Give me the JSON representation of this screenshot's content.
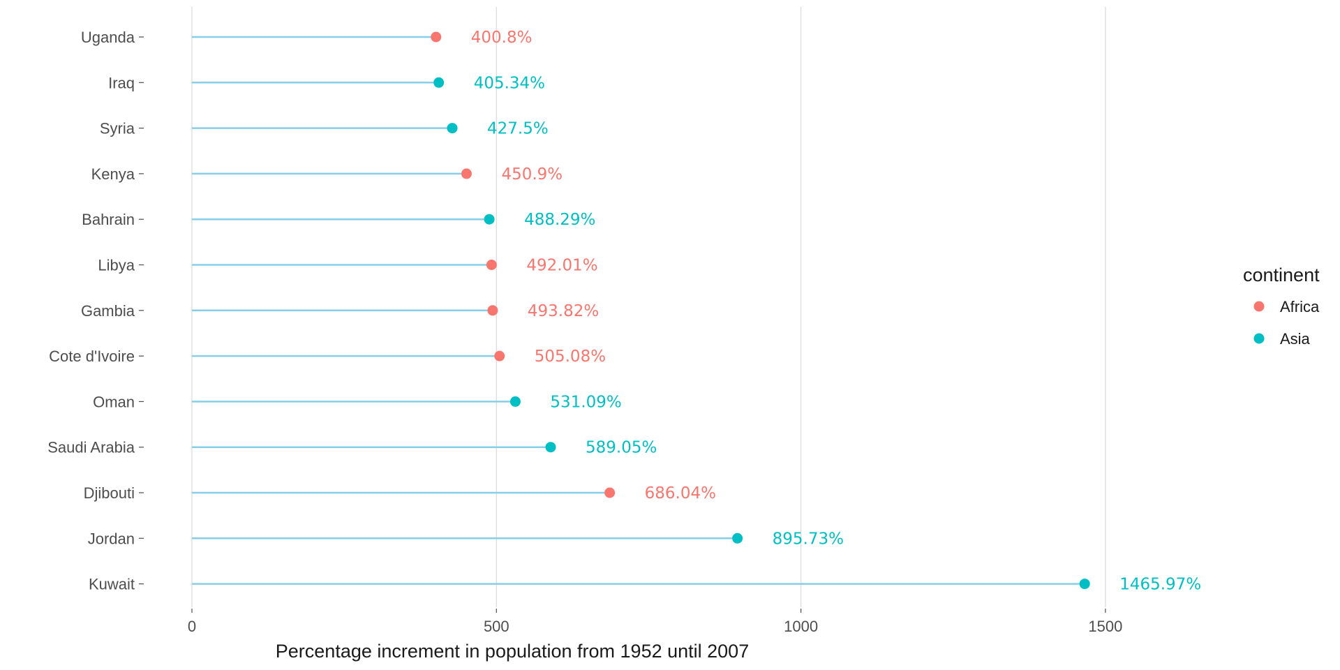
{
  "chart_data": {
    "type": "lollipop",
    "xlabel": "Percentage increment in population from 1952 until 2007",
    "xlim": [
      0,
      1800
    ],
    "x_ticks": [
      0,
      500,
      1000,
      1500
    ],
    "x_tick_labels": [
      "0",
      "500",
      "1000",
      "1500"
    ],
    "grid": "vertical major gridlines",
    "stem_color": "#87ceeb",
    "categories": [
      "Uganda",
      "Iraq",
      "Syria",
      "Kenya",
      "Bahrain",
      "Libya",
      "Gambia",
      "Cote d'Ivoire",
      "Oman",
      "Saudi Arabia",
      "Djibouti",
      "Jordan",
      "Kuwait"
    ],
    "values": [
      400.8,
      405.34,
      427.5,
      450.9,
      488.29,
      492.01,
      493.82,
      505.08,
      531.09,
      589.05,
      686.04,
      895.73,
      1465.97
    ],
    "value_labels": [
      "400.8%",
      "405.34%",
      "427.5%",
      "450.9%",
      "488.29%",
      "492.01%",
      "493.82%",
      "505.08%",
      "531.09%",
      "589.05%",
      "686.04%",
      "895.73%",
      "1465.97%"
    ],
    "groups": [
      "Africa",
      "Asia",
      "Asia",
      "Africa",
      "Asia",
      "Africa",
      "Africa",
      "Africa",
      "Asia",
      "Asia",
      "Africa",
      "Asia",
      "Asia"
    ],
    "legend": {
      "title": "continent",
      "position": "right",
      "entries": [
        {
          "name": "Africa",
          "color": "#f8766d"
        },
        {
          "name": "Asia",
          "color": "#00bfc4"
        }
      ]
    }
  }
}
